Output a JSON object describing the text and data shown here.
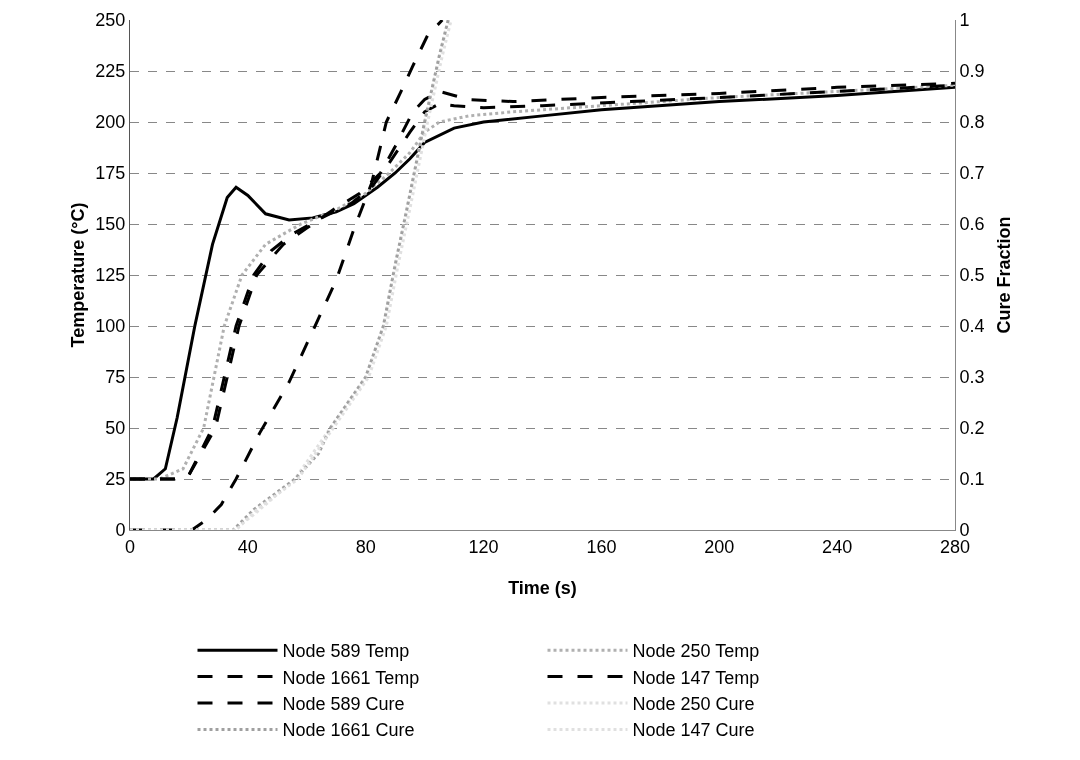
{
  "chart_data": {
    "type": "line",
    "xlabel": "Time (s)",
    "ylabel": "Temperature (°C)",
    "y2label": "Cure Fraction",
    "xlim": [
      0,
      280
    ],
    "xticks": [
      0,
      40,
      80,
      120,
      160,
      200,
      240,
      280
    ],
    "ylim": [
      0,
      250
    ],
    "yticks": [
      0,
      25,
      50,
      75,
      100,
      125,
      150,
      175,
      200,
      225,
      250
    ],
    "y2lim": [
      0,
      1
    ],
    "y2ticks": [
      0,
      0.1,
      0.2,
      0.3,
      0.4,
      0.5,
      0.6,
      0.7,
      0.8,
      0.9,
      1
    ],
    "grid": "y",
    "legend": "bottom",
    "marker": "none",
    "series": [
      {
        "name": "Node 589 Temp",
        "color": "#000000",
        "line_style": "solid",
        "x": [
          0,
          8,
          12,
          16,
          22,
          28,
          33,
          36,
          40,
          46,
          54,
          62,
          70,
          76,
          84,
          90,
          95,
          100,
          110,
          120,
          140,
          160,
          200,
          240,
          280
        ],
        "values": [
          25,
          25,
          30,
          55,
          100,
          140,
          163,
          168,
          164,
          155,
          152,
          153,
          156,
          160,
          168,
          175,
          182,
          190,
          197,
          200,
          203,
          206,
          210,
          213,
          217
        ]
      },
      {
        "name": "Node 250 Temp",
        "color": "#b0b0b0",
        "line_style": "dotted",
        "x": [
          0,
          10,
          18,
          25,
          32,
          38,
          46,
          58,
          70,
          80,
          88,
          95,
          100,
          105,
          115,
          130,
          160,
          200,
          240,
          280
        ],
        "values": [
          25,
          25,
          30,
          50,
          100,
          125,
          140,
          150,
          157,
          165,
          175,
          185,
          195,
          200,
          203,
          205,
          208,
          212,
          215,
          218
        ]
      },
      {
        "name": "Node 1661 Temp",
        "color": "#000000",
        "line_style": "dashed",
        "x": [
          0,
          15,
          20,
          28,
          36,
          42,
          48,
          55,
          65,
          75,
          82,
          88,
          95,
          100,
          105,
          110,
          120,
          140,
          170,
          200,
          240,
          280
        ],
        "values": [
          25,
          25,
          27,
          50,
          100,
          125,
          137,
          145,
          153,
          160,
          168,
          180,
          195,
          205,
          209,
          208,
          207,
          208,
          210,
          212,
          215,
          218
        ]
      },
      {
        "name": "Node 147 Temp",
        "color": "#000000",
        "line_style": "dashed",
        "x": [
          0,
          15,
          20,
          29,
          37,
          43,
          52,
          60,
          70,
          78,
          85,
          90,
          96,
          100,
          105,
          110,
          115,
          130,
          160,
          200,
          240,
          280
        ],
        "values": [
          25,
          25,
          27,
          50,
          100,
          125,
          140,
          148,
          158,
          165,
          175,
          188,
          205,
          211,
          215,
          213,
          211,
          210,
          212,
          214,
          217,
          219
        ]
      },
      {
        "name": "Node 589 Cure",
        "color": "#000000",
        "line_style": "dashed",
        "axis": "y2",
        "x": [
          0,
          21,
          26,
          31,
          36,
          44,
          54,
          62,
          70,
          76,
          82,
          87,
          92,
          96,
          101,
          106
        ],
        "values": [
          0,
          0,
          0.02,
          0.05,
          0.1,
          0.19,
          0.29,
          0.39,
          0.49,
          0.59,
          0.68,
          0.8,
          0.86,
          0.91,
          0.97,
          1
        ]
      },
      {
        "name": "Node 250 Cure",
        "color": "#e0e0e0",
        "line_style": "dotted",
        "axis": "y2",
        "x": [
          0,
          35,
          42,
          56,
          68,
          80,
          86,
          90,
          94,
          100,
          105,
          108
        ],
        "values": [
          0,
          0,
          0.03,
          0.1,
          0.2,
          0.3,
          0.4,
          0.52,
          0.63,
          0.8,
          0.93,
          1
        ]
      },
      {
        "name": "Node 1661 Cure",
        "color": "#a0a0a0",
        "line_style": "dotted",
        "axis": "y2",
        "x": [
          0,
          35,
          42,
          56,
          64,
          68,
          80,
          86,
          90,
          94,
          100,
          105,
          108
        ],
        "values": [
          0,
          0,
          0.04,
          0.1,
          0.15,
          0.2,
          0.3,
          0.4,
          0.52,
          0.63,
          0.8,
          0.93,
          1
        ]
      },
      {
        "name": "Node 147 Cure",
        "color": "#e0e0e0",
        "line_style": "dotted",
        "axis": "y2",
        "x": [
          0,
          36,
          43,
          57,
          69,
          81,
          87,
          91,
          95,
          101,
          106,
          109
        ],
        "values": [
          0,
          0,
          0.04,
          0.1,
          0.2,
          0.3,
          0.4,
          0.52,
          0.63,
          0.8,
          0.93,
          1
        ]
      }
    ]
  }
}
